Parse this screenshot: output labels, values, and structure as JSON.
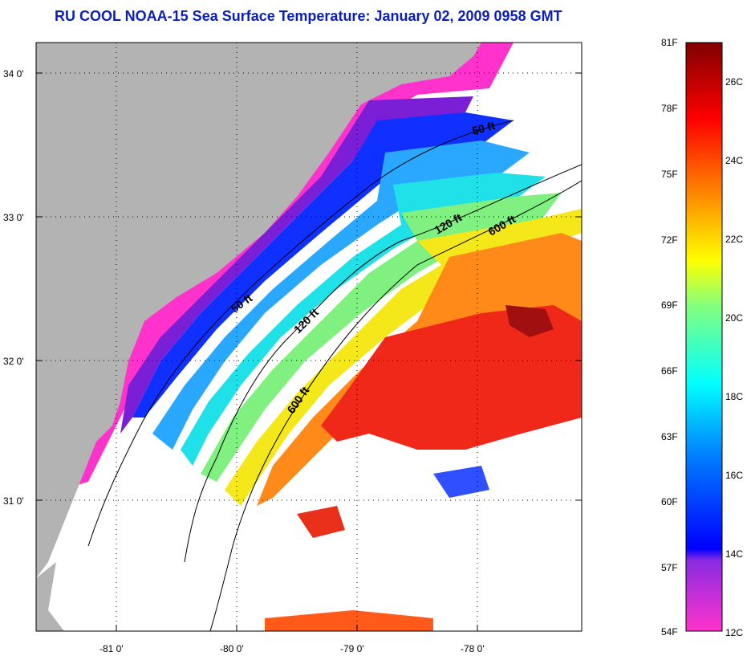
{
  "title": "RU COOL  NOAA-15  Sea Surface Temperature:  January 02, 2009 0958 GMT",
  "map": {
    "lat_labels": [
      "34 0'",
      "33 0'",
      "32 0'",
      "31 0'"
    ],
    "lon_labels": [
      "-81 0'",
      "-80 0'",
      "-79 0'",
      "-78 0'"
    ],
    "contours": [
      "50 ft",
      "120 ft",
      "600 ft"
    ],
    "contour_labels": [
      {
        "text": "50 ft",
        "contour": "50 ft"
      },
      {
        "text": "50 ft",
        "contour": "50 ft"
      },
      {
        "text": "120 ft",
        "contour": "120 ft"
      },
      {
        "text": "120 ft",
        "contour": "120 ft"
      },
      {
        "text": "600 ft",
        "contour": "600 ft"
      },
      {
        "text": "600 ft",
        "contour": "600 ft"
      }
    ],
    "colors": {
      "land": "#b3b3b3",
      "no_data": "#ffffff",
      "grid": "#000000"
    }
  },
  "colorbar": {
    "fahrenheit_labels": [
      "81F",
      "78F",
      "75F",
      "72F",
      "69F",
      "66F",
      "63F",
      "60F",
      "57F",
      "54F"
    ],
    "celsius_labels": [
      "26C",
      "24C",
      "22C",
      "20C",
      "18C",
      "16C",
      "14C",
      "12C"
    ],
    "colors": [
      "#ff33cc",
      "#8a2be2",
      "#0000ff",
      "#0080ff",
      "#00ffff",
      "#80ff80",
      "#ffff00",
      "#ff8000",
      "#ff0000",
      "#800000"
    ]
  }
}
